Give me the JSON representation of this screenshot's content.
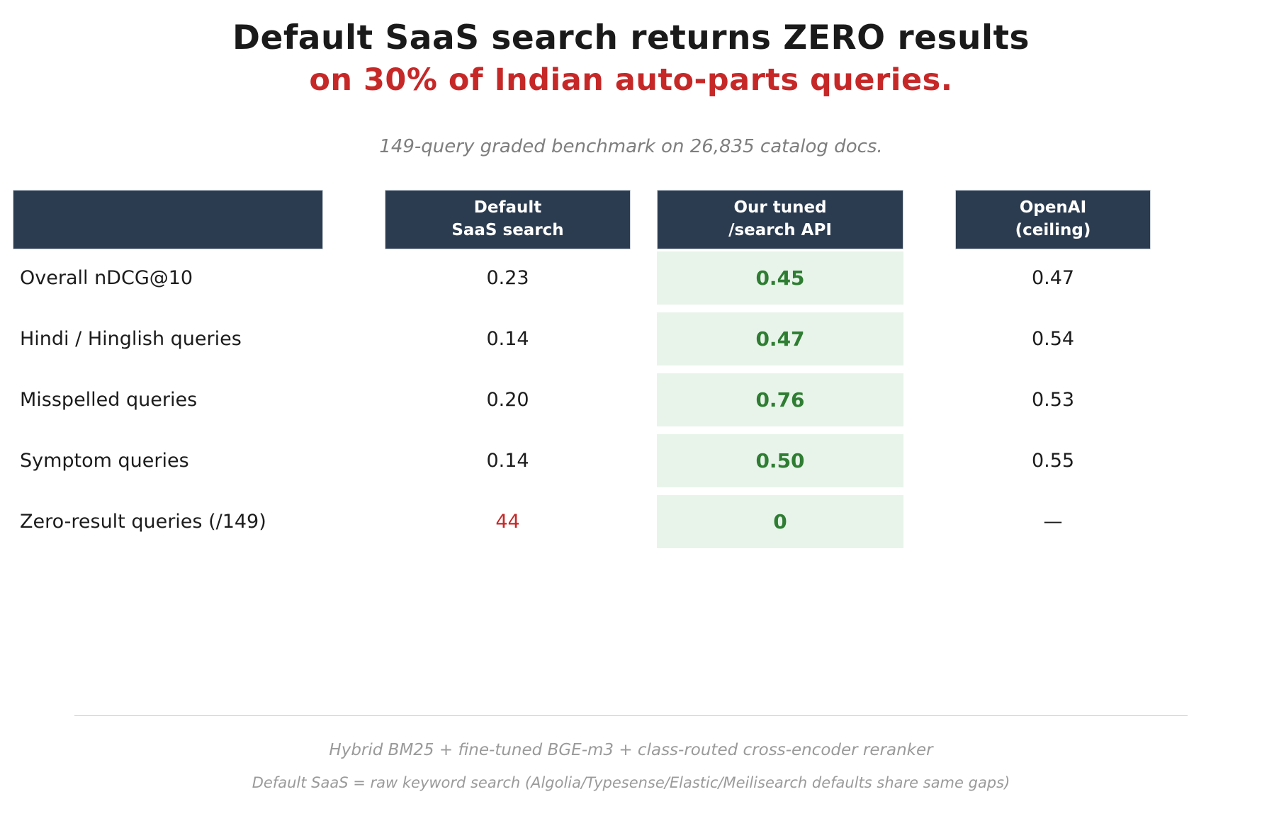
{
  "title": {
    "line1": "Default SaaS search returns ZERO results",
    "line2": "on 30% of Indian auto-parts queries."
  },
  "subtitle": "149-query graded benchmark on 26,835 catalog docs.",
  "colors": {
    "header_bg": "#2c3c50",
    "accent_red": "#c62828",
    "highlight_bg": "#e8f4ea",
    "highlight_text": "#2e7d32"
  },
  "table": {
    "columns": [
      {
        "line1": "Default",
        "line2": "SaaS search"
      },
      {
        "line1": "Our tuned",
        "line2": "/search API"
      },
      {
        "line1": "OpenAI",
        "line2": "(ceiling)"
      }
    ],
    "rows": [
      {
        "label": "Overall nDCG@10",
        "default": "0.23",
        "tuned": "0.45",
        "openai": "0.47"
      },
      {
        "label": "Hindi / Hinglish queries",
        "default": "0.14",
        "tuned": "0.47",
        "openai": "0.54"
      },
      {
        "label": "Misspelled queries",
        "default": "0.20",
        "tuned": "0.76",
        "openai": "0.53"
      },
      {
        "label": "Symptom queries",
        "default": "0.14",
        "tuned": "0.50",
        "openai": "0.55"
      },
      {
        "label": "Zero-result queries (/149)",
        "default": "44",
        "tuned": "0",
        "openai": "—"
      }
    ]
  },
  "footer": {
    "line1": "Hybrid BM25 + fine-tuned BGE-m3 + class-routed cross-encoder reranker",
    "line2": "Default SaaS = raw keyword search (Algolia/Typesense/Elastic/Meilisearch defaults share same gaps)"
  },
  "chart_data": {
    "type": "table",
    "title": "Default SaaS search returns ZERO results on 30% of Indian auto-parts queries.",
    "subtitle": "149-query graded benchmark on 26,835 catalog docs.",
    "columns": [
      "Default SaaS search",
      "Our tuned /search API",
      "OpenAI (ceiling)"
    ],
    "row_labels": [
      "Overall nDCG@10",
      "Hindi / Hinglish queries",
      "Misspelled queries",
      "Symptom queries",
      "Zero-result queries (/149)"
    ],
    "values": [
      [
        0.23,
        0.45,
        0.47
      ],
      [
        0.14,
        0.47,
        0.54
      ],
      [
        0.2,
        0.76,
        0.53
      ],
      [
        0.14,
        0.5,
        0.55
      ],
      [
        44,
        0,
        null
      ]
    ],
    "highlighted_column": "Our tuned /search API",
    "notes": [
      "44 shown in red (bad)",
      "tuned column values shown bold green on light-green background",
      "OpenAI zero-result value not reported (—)"
    ]
  }
}
